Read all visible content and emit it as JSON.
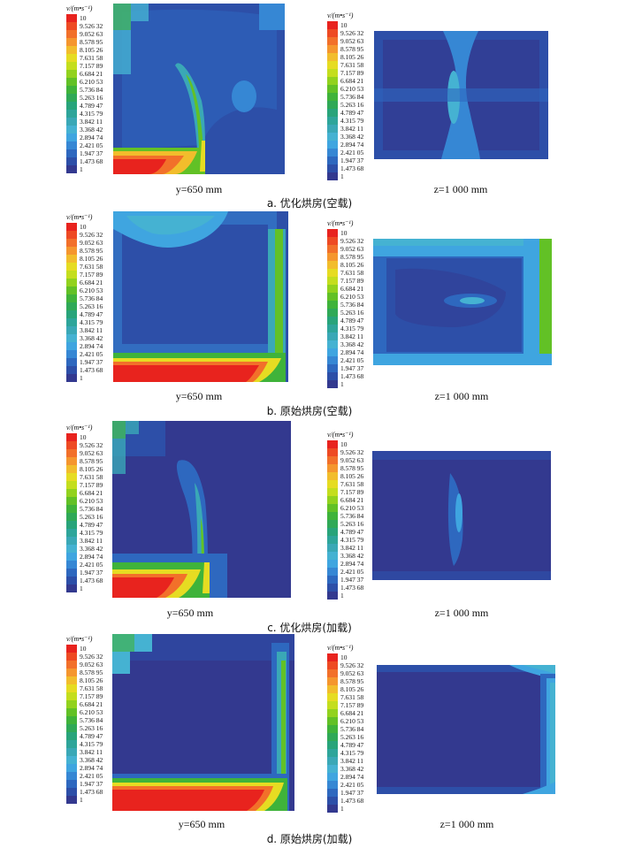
{
  "legend": {
    "unit": "v/(m•s⁻¹)",
    "ticks": [
      "10",
      "9.526 32",
      "9.052 63",
      "8.578 95",
      "8.105 26",
      "7.631 58",
      "7.157 89",
      "6.684 21",
      "6.210 53",
      "5.736 84",
      "5.263 16",
      "4.789 47",
      "4.315 79",
      "3.842 11",
      "3.368 42",
      "2.894 74",
      "2.421 05",
      "1.947 37",
      "1.473 68",
      "1"
    ],
    "colors": [
      "#e8231e",
      "#ee4a23",
      "#f2702a",
      "#f5962e",
      "#f2bd2c",
      "#e6dc22",
      "#c4de1e",
      "#92d21e",
      "#62c126",
      "#3fb33a",
      "#2fa957",
      "#28a47a",
      "#2ea59a",
      "#3aa8b6",
      "#45b2d2",
      "#3fa5e0",
      "#3687d4",
      "#2e68bf",
      "#2d4fa8",
      "#33398f"
    ]
  },
  "figures": [
    {
      "id": "a",
      "left_label": "y=650 mm",
      "right_label": "z=1 000 mm",
      "caption": "a.  优化烘房(空载)"
    },
    {
      "id": "b",
      "left_label": "y=650 mm",
      "right_label": "z=1 000 mm",
      "caption": "b.  原始烘房(空载)"
    },
    {
      "id": "c",
      "left_label": "y=650 mm",
      "right_label": "z=1 000 mm",
      "caption": "c.  优化烘房(加载)"
    },
    {
      "id": "d",
      "left_label": "y=650 mm",
      "right_label": "z=1 000 mm",
      "caption": "d.  原始烘房(加载)"
    }
  ]
}
